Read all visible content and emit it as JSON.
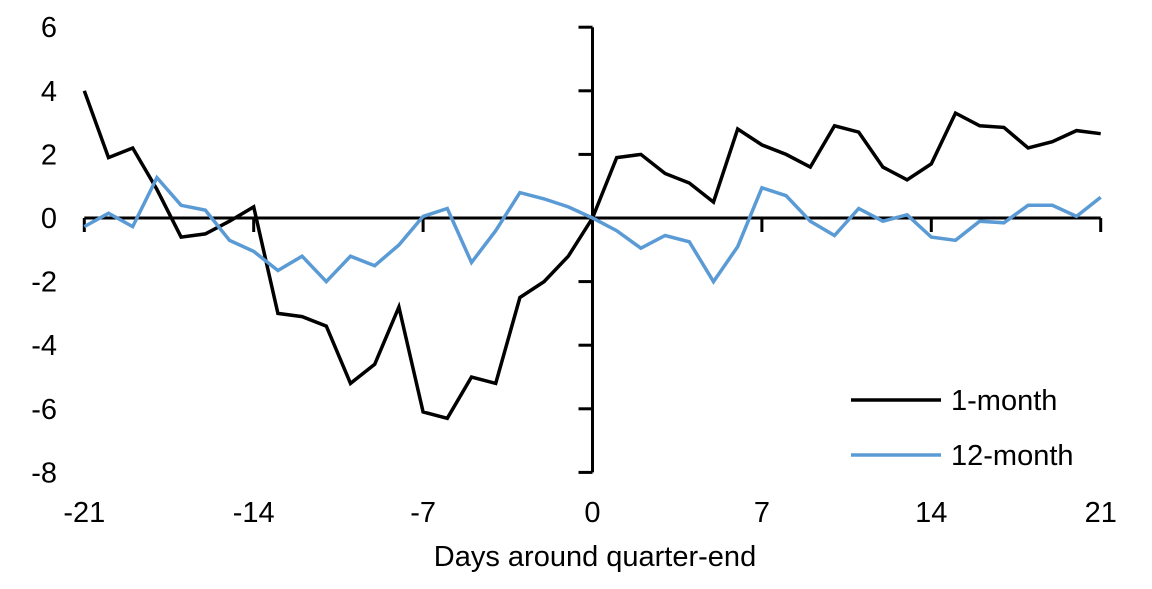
{
  "chart_data": {
    "type": "line",
    "xlabel": "Days around quarter-end",
    "ylabel": "",
    "title": "",
    "x": [
      -21,
      -20,
      -19,
      -18,
      -17,
      -16,
      -15,
      -14,
      -13,
      -12,
      -11,
      -10,
      -9,
      -8,
      -7,
      -6,
      -5,
      -4,
      -3,
      -2,
      -1,
      0,
      1,
      2,
      3,
      4,
      5,
      6,
      7,
      8,
      9,
      10,
      11,
      12,
      13,
      14,
      15,
      16,
      17,
      18,
      19,
      20,
      21
    ],
    "series": [
      {
        "name": "1-month",
        "color": "#000000",
        "values": [
          4.0,
          1.9,
          2.2,
          0.9,
          -0.6,
          -0.5,
          -0.1,
          0.35,
          -3.0,
          -3.1,
          -3.4,
          -5.2,
          -4.6,
          -2.8,
          -6.1,
          -6.3,
          -5.0,
          -5.2,
          -2.5,
          -2.0,
          -1.2,
          0.0,
          1.9,
          2.0,
          1.4,
          1.1,
          0.5,
          2.8,
          2.3,
          2.0,
          1.6,
          2.9,
          2.7,
          1.6,
          1.2,
          1.7,
          3.3,
          2.9,
          2.85,
          2.2,
          2.4,
          2.75,
          2.65
        ]
      },
      {
        "name": "12-month",
        "color": "#5B9BD5",
        "values": [
          -0.27,
          0.15,
          -0.27,
          1.27,
          0.4,
          0.25,
          -0.7,
          -1.05,
          -1.65,
          -1.2,
          -2.0,
          -1.2,
          -1.5,
          -0.85,
          0.05,
          0.3,
          -1.4,
          -0.4,
          0.8,
          0.6,
          0.35,
          0.0,
          -0.4,
          -0.95,
          -0.55,
          -0.75,
          -2.0,
          -0.9,
          0.95,
          0.7,
          -0.1,
          -0.55,
          0.3,
          -0.1,
          0.1,
          -0.6,
          -0.7,
          -0.1,
          -0.15,
          0.4,
          0.4,
          0.05,
          0.65
        ]
      }
    ],
    "xlim": [
      -21,
      21
    ],
    "ylim": [
      -8,
      6
    ],
    "x_ticks": [
      -21,
      -14,
      -7,
      0,
      7,
      14,
      21
    ],
    "y_ticks": [
      6,
      4,
      2,
      0,
      -2,
      -4,
      -6,
      -8
    ],
    "grid": "off",
    "legend_position": "inside lower-right"
  }
}
